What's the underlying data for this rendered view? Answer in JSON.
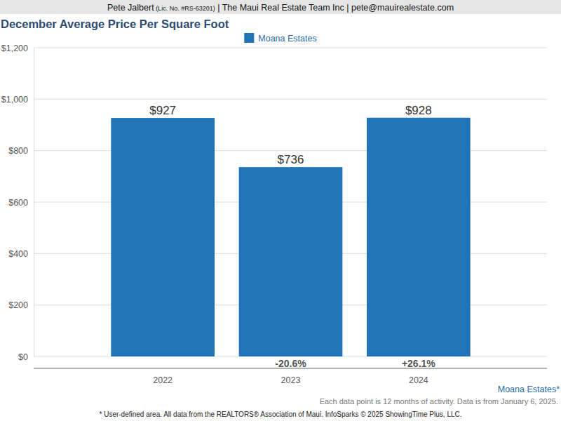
{
  "chart_data": {
    "type": "bar",
    "header": [
      "Pete Jalbert",
      "(Lic. No. #RS-63201)",
      "| The Maui Real Estate Team Inc | pete@mauirealestate.com"
    ],
    "title": "December Average Price Per Square Foot",
    "categories": [
      "2022",
      "2023",
      "2024"
    ],
    "series": [
      {
        "name": "Moana Estates",
        "color": "#1f73b7",
        "values": [
          927,
          736,
          928
        ],
        "value_labels": [
          "$927",
          "$736",
          "$928"
        ]
      }
    ],
    "ylim": [
      0,
      1200
    ],
    "yticks": [
      {
        "value": 0,
        "label": "$0"
      },
      {
        "value": 200,
        "label": "$200"
      },
      {
        "value": 400,
        "label": "$400"
      },
      {
        "value": 600,
        "label": "$600"
      },
      {
        "value": 800,
        "label": "$800"
      },
      {
        "value": 1000,
        "label": "$1,000"
      },
      {
        "value": 1200,
        "label": "$1,200"
      }
    ],
    "grid": true,
    "legend": "top",
    "data_labels": true,
    "annotations": [
      {
        "category": "2023",
        "text": "-20.6%"
      },
      {
        "category": "2024",
        "text": "+26.1%"
      }
    ],
    "source": "Moana Estates*",
    "notes": [
      "Each data point is 12 months of activity. Data is from January 6, 2025.",
      "* User-defined area. All data from the REALTORS® Association of Maui. InfoSparks © 2025 ShowingTime Plus, LLC."
    ]
  }
}
